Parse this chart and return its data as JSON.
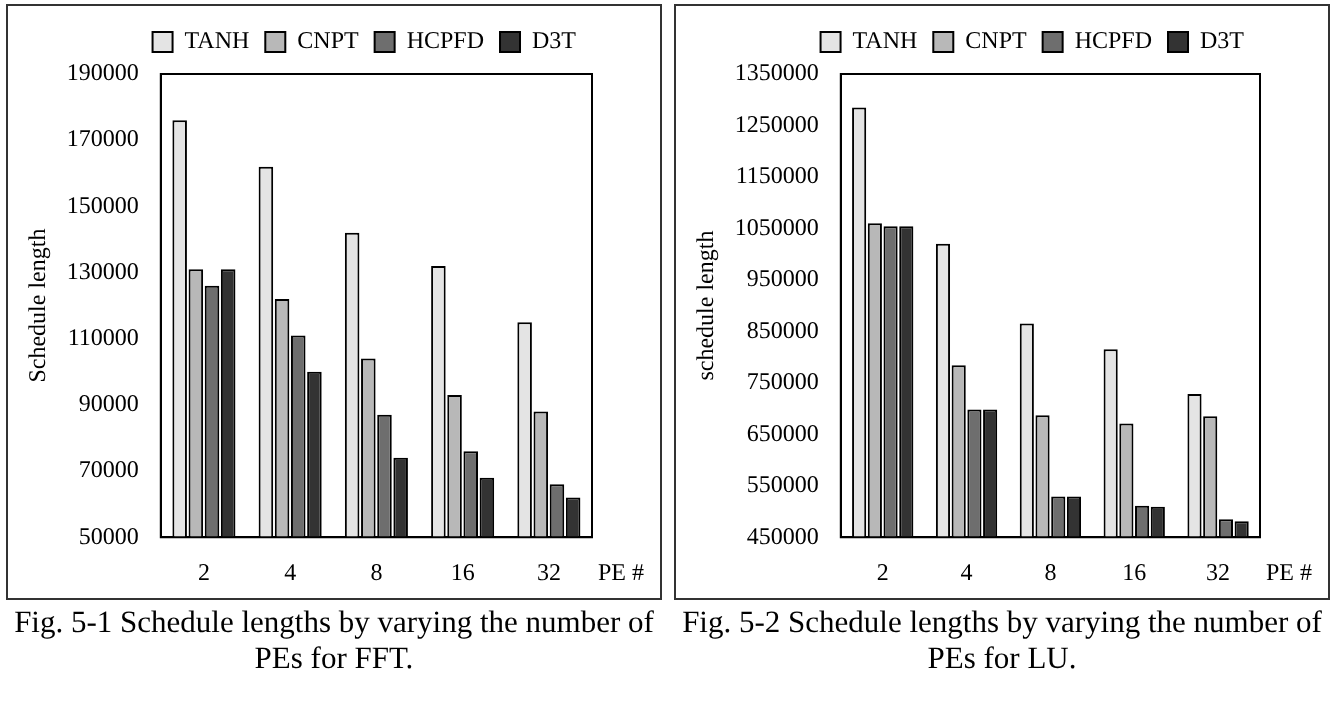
{
  "chart_data": [
    {
      "type": "bar",
      "xlabel": "PE #",
      "ylabel": "Schedule length",
      "categories": [
        "2",
        "4",
        "8",
        "16",
        "32"
      ],
      "series": [
        {
          "name": "TANH",
          "color": "#e4e4e4",
          "values": [
            176000,
            162000,
            142000,
            132000,
            115000
          ]
        },
        {
          "name": "CNPT",
          "color": "#b8b8b8",
          "values": [
            131000,
            122000,
            104000,
            93000,
            88000
          ]
        },
        {
          "name": "HCPFD",
          "color": "#6e6e6e",
          "values": [
            126000,
            111000,
            87000,
            76000,
            66000
          ]
        },
        {
          "name": "D3T",
          "color": "#333333",
          "values": [
            131000,
            100000,
            74000,
            68000,
            62000
          ]
        }
      ],
      "ylim": [
        50000,
        190000
      ],
      "yticks": [
        50000,
        70000,
        90000,
        110000,
        130000,
        150000,
        170000,
        190000
      ],
      "grid": false,
      "legend": "top right",
      "annotations": [
        "Fig. 5-1 Schedule lengths by varying the number of PEs for FFT."
      ]
    },
    {
      "type": "bar",
      "xlabel": "PE #",
      "ylabel": "schedule length",
      "categories": [
        "2",
        "4",
        "8",
        "16",
        "32"
      ],
      "series": [
        {
          "name": "TANH",
          "color": "#e4e4e4",
          "values": [
            1285000,
            1020000,
            865000,
            815000,
            728000
          ]
        },
        {
          "name": "CNPT",
          "color": "#b8b8b8",
          "values": [
            1060000,
            784000,
            687000,
            671000,
            685000
          ]
        },
        {
          "name": "HCPFD",
          "color": "#6e6e6e",
          "values": [
            1054000,
            698000,
            529000,
            511000,
            485000
          ]
        },
        {
          "name": "D3T",
          "color": "#333333",
          "values": [
            1054000,
            698000,
            529000,
            509000,
            481000
          ]
        }
      ],
      "ylim": [
        450000,
        1350000
      ],
      "yticks": [
        450000,
        550000,
        650000,
        750000,
        850000,
        950000,
        1050000,
        1150000,
        1250000,
        1350000
      ],
      "grid": false,
      "legend": "top right",
      "annotations": [
        "Fig. 5-2 Schedule lengths by varying the number of PEs for LU."
      ]
    }
  ]
}
